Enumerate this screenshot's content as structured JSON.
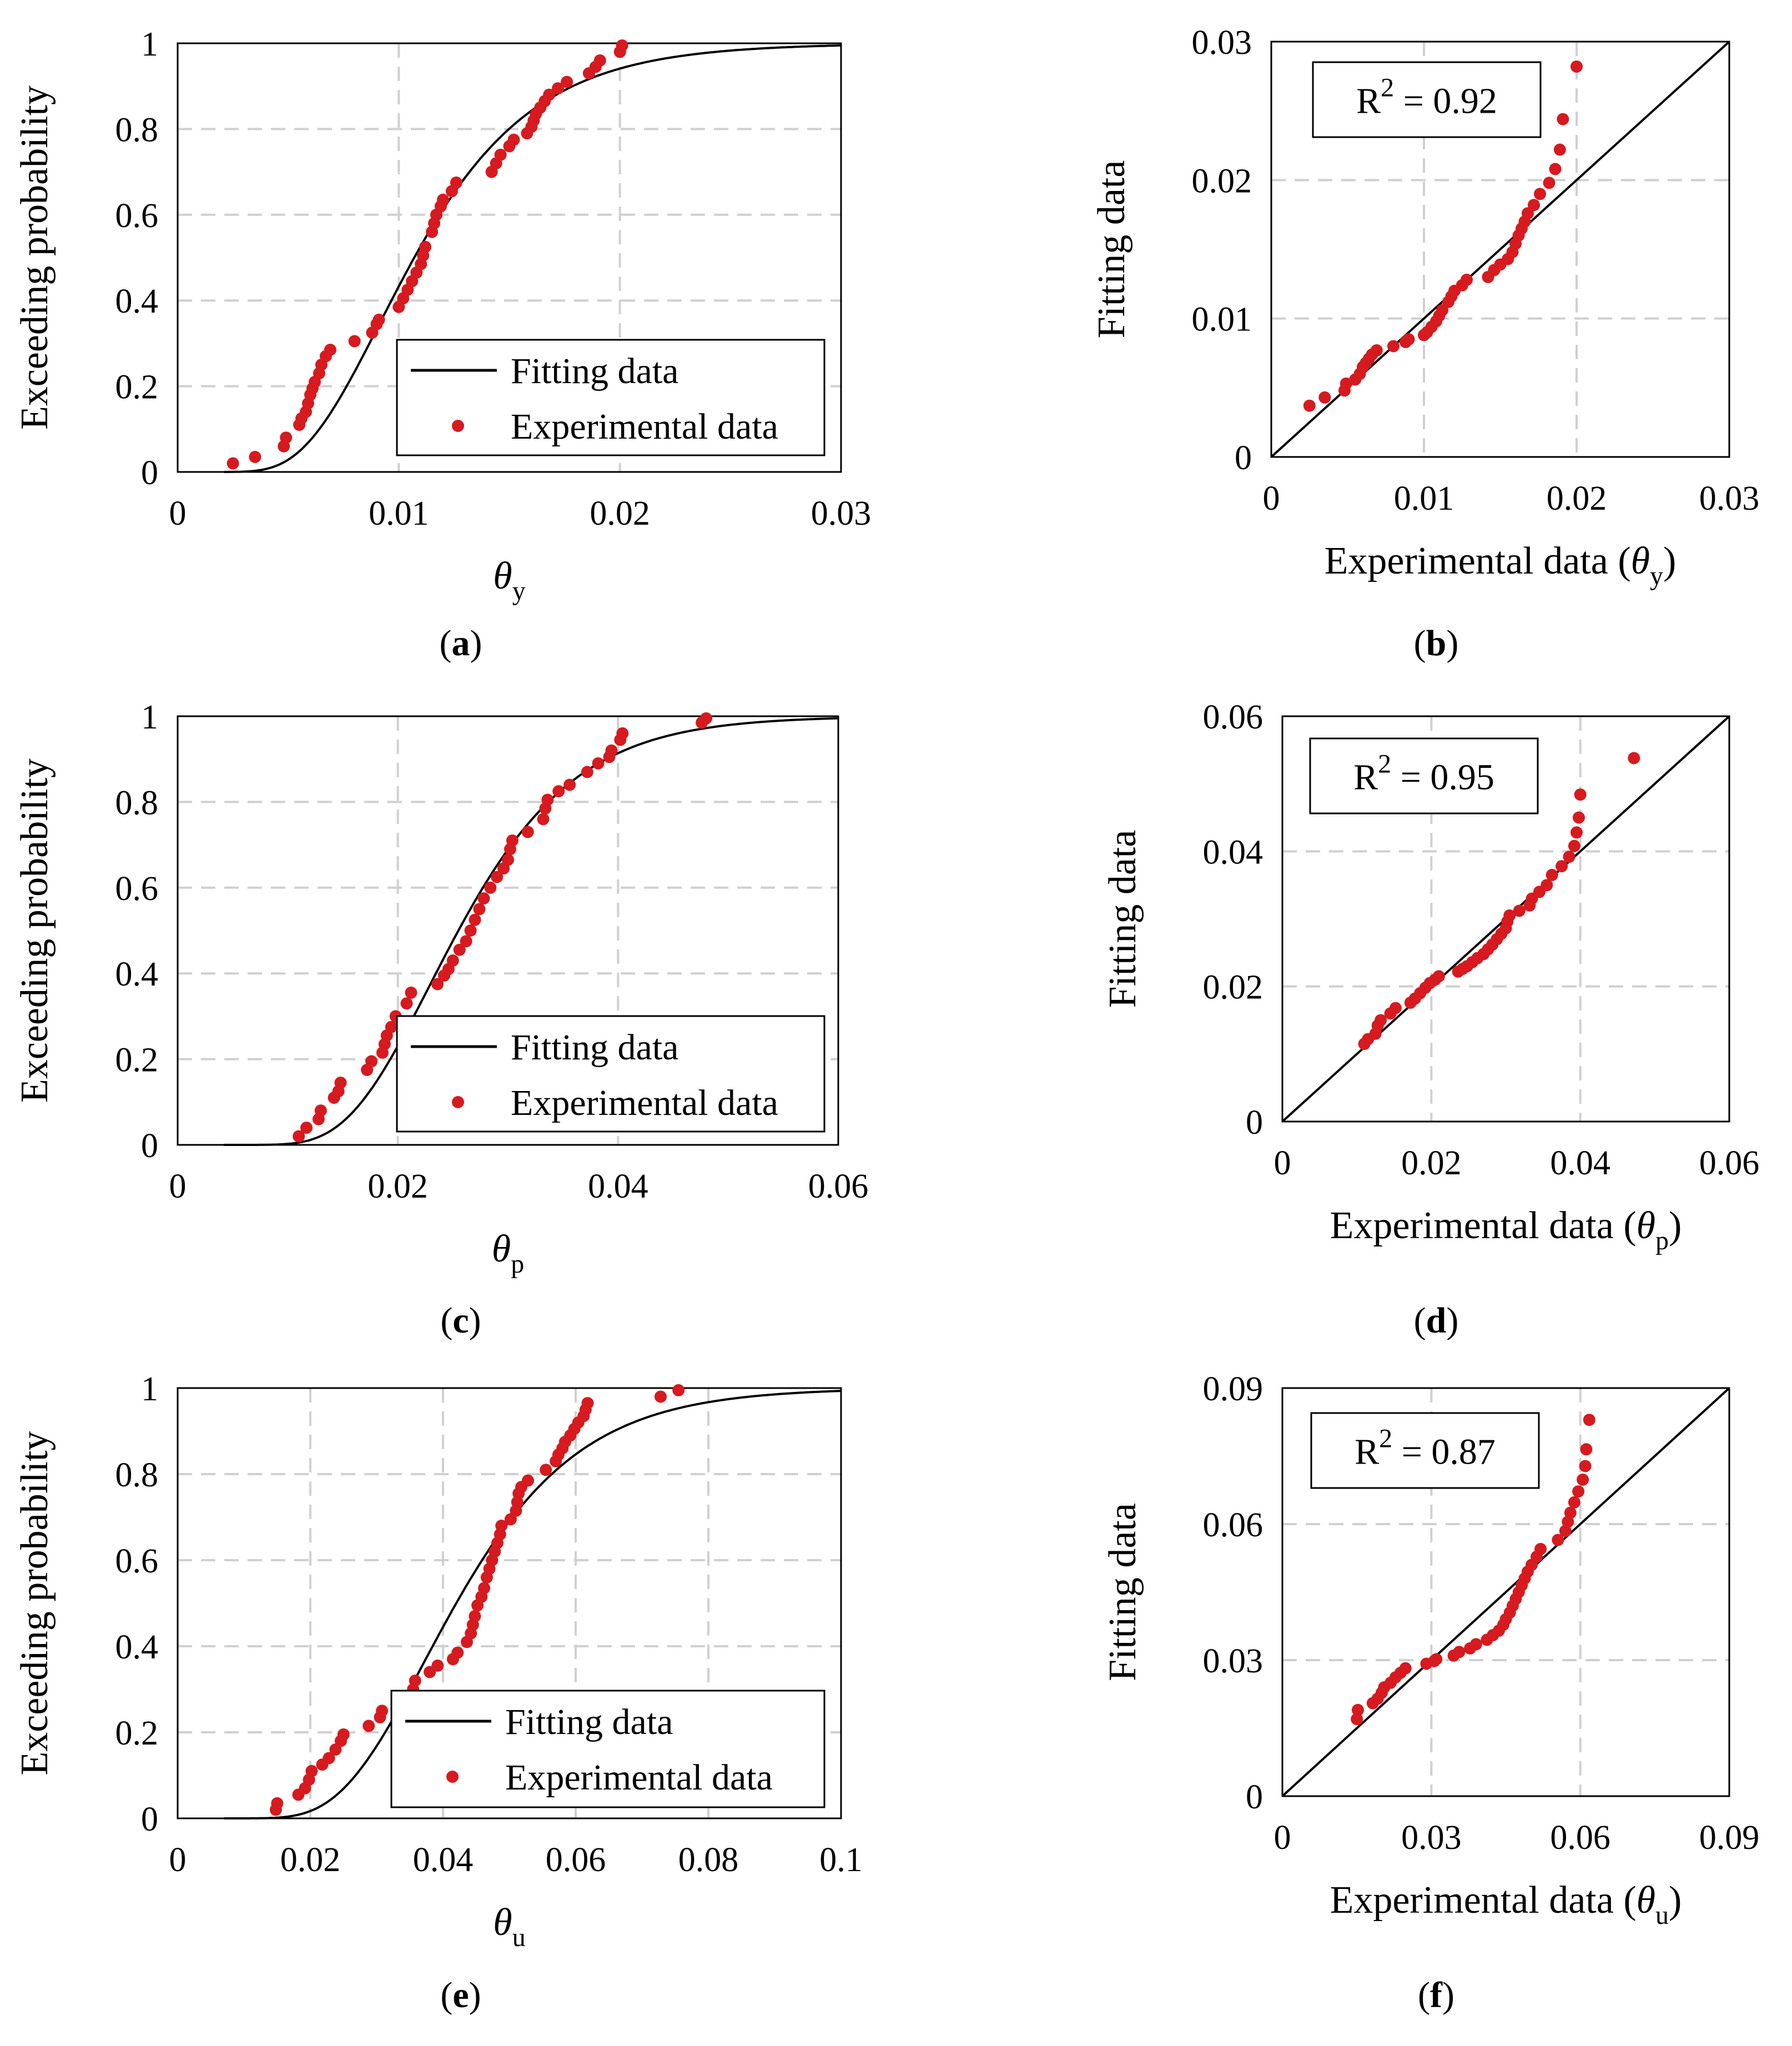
{
  "colors": {
    "fit": "#000000",
    "points": "#d61a1f",
    "grid": "#d0d0d0",
    "frame": "#000000"
  },
  "charts": [
    {
      "kind": "cdf",
      "panel": "(a)",
      "xsym": "θ",
      "xsub": "y",
      "ylabel": "Exceeding probability",
      "xlim": [
        0,
        0.03
      ],
      "ylim": [
        0,
        1
      ],
      "xticks": [
        0,
        0.01,
        0.02,
        0.03
      ],
      "xticklabels": [
        "0",
        "0.01",
        "0.02",
        "0.03"
      ],
      "yticks": [
        0,
        0.2,
        0.4,
        0.6,
        0.8,
        1
      ],
      "yticklabels": [
        "0",
        "0.2",
        "0.4",
        "0.6",
        "0.8",
        "1"
      ],
      "legend": {
        "fit": "Fitting data",
        "exp": "Experimental data"
      },
      "fit": {
        "median": 0.0107,
        "beta": 0.4
      },
      "points": [
        [
          0.0025,
          0.02
        ],
        [
          0.0035,
          0.035
        ],
        [
          0.0048,
          0.06
        ],
        [
          0.0049,
          0.08
        ],
        [
          0.0055,
          0.11
        ],
        [
          0.0056,
          0.125
        ],
        [
          0.0058,
          0.14
        ],
        [
          0.0059,
          0.16
        ],
        [
          0.006,
          0.18
        ],
        [
          0.0061,
          0.195
        ],
        [
          0.0062,
          0.21
        ],
        [
          0.0064,
          0.23
        ],
        [
          0.0065,
          0.25
        ],
        [
          0.0067,
          0.27
        ],
        [
          0.0069,
          0.285
        ],
        [
          0.008,
          0.305
        ],
        [
          0.0088,
          0.325
        ],
        [
          0.009,
          0.345
        ],
        [
          0.0091,
          0.355
        ],
        [
          0.01,
          0.385
        ],
        [
          0.0102,
          0.405
        ],
        [
          0.0104,
          0.425
        ],
        [
          0.0106,
          0.445
        ],
        [
          0.0108,
          0.465
        ],
        [
          0.011,
          0.485
        ],
        [
          0.0111,
          0.505
        ],
        [
          0.0112,
          0.525
        ],
        [
          0.0115,
          0.56
        ],
        [
          0.0116,
          0.58
        ],
        [
          0.0117,
          0.6
        ],
        [
          0.0119,
          0.62
        ],
        [
          0.012,
          0.635
        ],
        [
          0.0124,
          0.655
        ],
        [
          0.0126,
          0.675
        ],
        [
          0.0142,
          0.7
        ],
        [
          0.0144,
          0.72
        ],
        [
          0.0146,
          0.74
        ],
        [
          0.015,
          0.76
        ],
        [
          0.0152,
          0.775
        ],
        [
          0.0158,
          0.79
        ],
        [
          0.016,
          0.805
        ],
        [
          0.0161,
          0.82
        ],
        [
          0.0162,
          0.835
        ],
        [
          0.0164,
          0.85
        ],
        [
          0.0166,
          0.865
        ],
        [
          0.0168,
          0.88
        ],
        [
          0.0172,
          0.895
        ],
        [
          0.0176,
          0.91
        ],
        [
          0.0186,
          0.93
        ],
        [
          0.0189,
          0.945
        ],
        [
          0.0191,
          0.96
        ],
        [
          0.02,
          0.98
        ],
        [
          0.0201,
          0.995
        ]
      ]
    },
    {
      "kind": "qq",
      "panel": "(b)",
      "xsym": "θ",
      "xsub": "y",
      "xlabel_prefix": "Experimental data (",
      "xlabel_suffix": ")",
      "ylabel": "Fitting data",
      "xlim": [
        0,
        0.03
      ],
      "ylim": [
        0,
        0.03
      ],
      "xticks": [
        0,
        0.01,
        0.02,
        0.03
      ],
      "xticklabels": [
        "0",
        "0.01",
        "0.02",
        "0.03"
      ],
      "yticks": [
        0,
        0.01,
        0.02,
        0.03
      ],
      "yticklabels": [
        "0",
        "0.01",
        "0.02",
        "0.03"
      ],
      "r2_prefix": "R",
      "r2_sup": "2",
      "r2_value": " = 0.92",
      "points": [
        [
          0.0025,
          0.0037
        ],
        [
          0.0035,
          0.0043
        ],
        [
          0.0048,
          0.0048
        ],
        [
          0.0049,
          0.0053
        ],
        [
          0.0055,
          0.0056
        ],
        [
          0.0058,
          0.006
        ],
        [
          0.006,
          0.0065
        ],
        [
          0.0062,
          0.0068
        ],
        [
          0.0064,
          0.0071
        ],
        [
          0.0066,
          0.0074
        ],
        [
          0.0069,
          0.0077
        ],
        [
          0.008,
          0.008
        ],
        [
          0.0088,
          0.0083
        ],
        [
          0.009,
          0.0085
        ],
        [
          0.01,
          0.0088
        ],
        [
          0.0102,
          0.009
        ],
        [
          0.0105,
          0.0094
        ],
        [
          0.0108,
          0.0098
        ],
        [
          0.011,
          0.0102
        ],
        [
          0.0112,
          0.0106
        ],
        [
          0.0116,
          0.0112
        ],
        [
          0.0118,
          0.0116
        ],
        [
          0.012,
          0.012
        ],
        [
          0.0125,
          0.0124
        ],
        [
          0.0128,
          0.0128
        ],
        [
          0.0142,
          0.013
        ],
        [
          0.0146,
          0.0135
        ],
        [
          0.015,
          0.0139
        ],
        [
          0.0155,
          0.0143
        ],
        [
          0.0158,
          0.0148
        ],
        [
          0.016,
          0.0154
        ],
        [
          0.0162,
          0.016
        ],
        [
          0.0164,
          0.0165
        ],
        [
          0.0166,
          0.017
        ],
        [
          0.0168,
          0.0176
        ],
        [
          0.0172,
          0.0182
        ],
        [
          0.0176,
          0.019
        ],
        [
          0.0182,
          0.0198
        ],
        [
          0.0186,
          0.0208
        ],
        [
          0.0189,
          0.0222
        ],
        [
          0.0191,
          0.0244
        ],
        [
          0.02,
          0.0282
        ]
      ]
    },
    {
      "kind": "cdf",
      "panel": "(c)",
      "xsym": "θ",
      "xsub": "p",
      "ylabel": "Exceeding probability",
      "xlim": [
        0,
        0.06
      ],
      "ylim": [
        0,
        1
      ],
      "xticks": [
        0,
        0.02,
        0.04,
        0.06
      ],
      "xticklabels": [
        "0",
        "0.02",
        "0.04",
        "0.06"
      ],
      "yticks": [
        0,
        0.2,
        0.4,
        0.6,
        0.8,
        1
      ],
      "yticklabels": [
        "0",
        "0.2",
        "0.4",
        "0.6",
        "0.8",
        "1"
      ],
      "legend": {
        "fit": "Fitting data",
        "exp": "Experimental data"
      },
      "fit": {
        "median": 0.0255,
        "beta": 0.33
      },
      "points": [
        [
          0.011,
          0.02
        ],
        [
          0.0117,
          0.04
        ],
        [
          0.0128,
          0.06
        ],
        [
          0.013,
          0.08
        ],
        [
          0.0142,
          0.11
        ],
        [
          0.0146,
          0.125
        ],
        [
          0.0148,
          0.145
        ],
        [
          0.0172,
          0.175
        ],
        [
          0.0176,
          0.195
        ],
        [
          0.0186,
          0.215
        ],
        [
          0.0188,
          0.235
        ],
        [
          0.019,
          0.255
        ],
        [
          0.0194,
          0.275
        ],
        [
          0.0198,
          0.3
        ],
        [
          0.0208,
          0.33
        ],
        [
          0.0212,
          0.355
        ],
        [
          0.0236,
          0.375
        ],
        [
          0.0242,
          0.395
        ],
        [
          0.0246,
          0.41
        ],
        [
          0.025,
          0.43
        ],
        [
          0.0256,
          0.455
        ],
        [
          0.0262,
          0.475
        ],
        [
          0.0266,
          0.5
        ],
        [
          0.027,
          0.525
        ],
        [
          0.0274,
          0.55
        ],
        [
          0.0278,
          0.575
        ],
        [
          0.0284,
          0.6
        ],
        [
          0.029,
          0.625
        ],
        [
          0.0296,
          0.645
        ],
        [
          0.03,
          0.665
        ],
        [
          0.0302,
          0.69
        ],
        [
          0.0304,
          0.71
        ],
        [
          0.0318,
          0.73
        ],
        [
          0.0332,
          0.76
        ],
        [
          0.0334,
          0.785
        ],
        [
          0.0336,
          0.805
        ],
        [
          0.0346,
          0.825
        ],
        [
          0.0356,
          0.84
        ],
        [
          0.0372,
          0.87
        ],
        [
          0.0382,
          0.89
        ],
        [
          0.0392,
          0.905
        ],
        [
          0.0394,
          0.92
        ],
        [
          0.0402,
          0.945
        ],
        [
          0.0404,
          0.96
        ],
        [
          0.0476,
          0.985
        ],
        [
          0.048,
          0.995
        ]
      ]
    },
    {
      "kind": "qq",
      "panel": "(d)",
      "xsym": "θ",
      "xsub": "p",
      "xlabel_prefix": "Experimental data (",
      "xlabel_suffix": ")",
      "ylabel": "Fitting data",
      "xlim": [
        0,
        0.06
      ],
      "ylim": [
        0,
        0.06
      ],
      "xticks": [
        0,
        0.02,
        0.04,
        0.06
      ],
      "xticklabels": [
        "0",
        "0.02",
        "0.04",
        "0.06"
      ],
      "yticks": [
        0,
        0.02,
        0.04,
        0.06
      ],
      "yticklabels": [
        "0",
        "0.02",
        "0.04",
        "0.06"
      ],
      "r2_prefix": "R",
      "r2_sup": "2",
      "r2_value": " = 0.95",
      "points": [
        [
          0.011,
          0.0115
        ],
        [
          0.0115,
          0.0122
        ],
        [
          0.0125,
          0.013
        ],
        [
          0.0128,
          0.0142
        ],
        [
          0.0132,
          0.015
        ],
        [
          0.0145,
          0.016
        ],
        [
          0.0152,
          0.0168
        ],
        [
          0.0172,
          0.0176
        ],
        [
          0.0178,
          0.0182
        ],
        [
          0.0185,
          0.019
        ],
        [
          0.0192,
          0.0198
        ],
        [
          0.0198,
          0.0205
        ],
        [
          0.0205,
          0.021
        ],
        [
          0.021,
          0.0215
        ],
        [
          0.0236,
          0.0222
        ],
        [
          0.0242,
          0.0226
        ],
        [
          0.0248,
          0.023
        ],
        [
          0.0255,
          0.0236
        ],
        [
          0.0262,
          0.0242
        ],
        [
          0.027,
          0.0248
        ],
        [
          0.0276,
          0.0255
        ],
        [
          0.0282,
          0.0262
        ],
        [
          0.0288,
          0.027
        ],
        [
          0.0294,
          0.0278
        ],
        [
          0.03,
          0.0286
        ],
        [
          0.0302,
          0.0296
        ],
        [
          0.0305,
          0.0305
        ],
        [
          0.0318,
          0.0312
        ],
        [
          0.0332,
          0.032
        ],
        [
          0.0335,
          0.033
        ],
        [
          0.0345,
          0.034
        ],
        [
          0.0355,
          0.035
        ],
        [
          0.0362,
          0.0365
        ],
        [
          0.0375,
          0.0378
        ],
        [
          0.0385,
          0.0392
        ],
        [
          0.0392,
          0.0408
        ],
        [
          0.0395,
          0.0428
        ],
        [
          0.0398,
          0.045
        ],
        [
          0.04,
          0.0484
        ],
        [
          0.0472,
          0.0538
        ]
      ]
    },
    {
      "kind": "cdf",
      "panel": "(e)",
      "xsym": "θ",
      "xsub": "u",
      "ylabel": "Exceeding probability",
      "xlim": [
        0,
        0.1
      ],
      "ylim": [
        0,
        1
      ],
      "xticks": [
        0,
        0.02,
        0.04,
        0.06,
        0.08,
        0.1
      ],
      "xticklabels": [
        "0",
        "0.02",
        "0.04",
        "0.06",
        "0.08",
        "0.1"
      ],
      "yticks": [
        0,
        0.2,
        0.4,
        0.6,
        0.8,
        1
      ],
      "yticklabels": [
        "0",
        "0.2",
        "0.4",
        "0.6",
        "0.8",
        "1"
      ],
      "legend": {
        "fit": "Fitting data",
        "exp": "Experimental data"
      },
      "fit": {
        "median": 0.042,
        "beta": 0.35
      },
      "points": [
        [
          0.0148,
          0.02
        ],
        [
          0.015,
          0.035
        ],
        [
          0.0182,
          0.055
        ],
        [
          0.0192,
          0.07
        ],
        [
          0.0198,
          0.09
        ],
        [
          0.0202,
          0.11
        ],
        [
          0.0218,
          0.125
        ],
        [
          0.0228,
          0.14
        ],
        [
          0.0238,
          0.16
        ],
        [
          0.0246,
          0.18
        ],
        [
          0.025,
          0.195
        ],
        [
          0.0288,
          0.215
        ],
        [
          0.0305,
          0.235
        ],
        [
          0.0308,
          0.25
        ],
        [
          0.0355,
          0.3
        ],
        [
          0.0358,
          0.32
        ],
        [
          0.038,
          0.34
        ],
        [
          0.0392,
          0.355
        ],
        [
          0.0415,
          0.37
        ],
        [
          0.0422,
          0.385
        ],
        [
          0.0436,
          0.41
        ],
        [
          0.0442,
          0.43
        ],
        [
          0.0445,
          0.45
        ],
        [
          0.0448,
          0.47
        ],
        [
          0.0452,
          0.495
        ],
        [
          0.0458,
          0.515
        ],
        [
          0.0462,
          0.535
        ],
        [
          0.0466,
          0.56
        ],
        [
          0.047,
          0.58
        ],
        [
          0.0474,
          0.6
        ],
        [
          0.0478,
          0.62
        ],
        [
          0.0482,
          0.64
        ],
        [
          0.0486,
          0.66
        ],
        [
          0.0488,
          0.68
        ],
        [
          0.0502,
          0.695
        ],
        [
          0.051,
          0.715
        ],
        [
          0.0512,
          0.735
        ],
        [
          0.0514,
          0.755
        ],
        [
          0.0518,
          0.77
        ],
        [
          0.0528,
          0.785
        ],
        [
          0.0555,
          0.81
        ],
        [
          0.057,
          0.83
        ],
        [
          0.0574,
          0.845
        ],
        [
          0.058,
          0.86
        ],
        [
          0.0584,
          0.875
        ],
        [
          0.0592,
          0.89
        ],
        [
          0.0598,
          0.905
        ],
        [
          0.0604,
          0.92
        ],
        [
          0.0612,
          0.935
        ],
        [
          0.0615,
          0.95
        ],
        [
          0.0618,
          0.965
        ],
        [
          0.0728,
          0.98
        ],
        [
          0.0755,
          0.995
        ]
      ]
    },
    {
      "kind": "qq",
      "panel": "(f)",
      "xsym": "θ",
      "xsub": "u",
      "xlabel_prefix": "Experimental data (",
      "xlabel_suffix": ")",
      "ylabel": "Fitting data",
      "xlim": [
        0,
        0.09
      ],
      "ylim": [
        0,
        0.09
      ],
      "xticks": [
        0,
        0.03,
        0.06,
        0.09
      ],
      "xticklabels": [
        "0",
        "0.03",
        "0.06",
        "0.09"
      ],
      "yticks": [
        0,
        0.03,
        0.06,
        0.09
      ],
      "yticklabels": [
        "0",
        "0.03",
        "0.06",
        "0.09"
      ],
      "r2_prefix": "R",
      "r2_sup": "2",
      "r2_value": " = 0.87",
      "points": [
        [
          0.015,
          0.017
        ],
        [
          0.0152,
          0.019
        ],
        [
          0.0182,
          0.0205
        ],
        [
          0.0192,
          0.0215
        ],
        [
          0.02,
          0.0228
        ],
        [
          0.0205,
          0.024
        ],
        [
          0.0218,
          0.025
        ],
        [
          0.0228,
          0.0262
        ],
        [
          0.0238,
          0.0272
        ],
        [
          0.0248,
          0.0282
        ],
        [
          0.029,
          0.0292
        ],
        [
          0.0306,
          0.0298
        ],
        [
          0.031,
          0.0302
        ],
        [
          0.0345,
          0.031
        ],
        [
          0.0356,
          0.0318
        ],
        [
          0.0378,
          0.0326
        ],
        [
          0.039,
          0.0335
        ],
        [
          0.0412,
          0.0345
        ],
        [
          0.0424,
          0.0355
        ],
        [
          0.0436,
          0.0365
        ],
        [
          0.0445,
          0.0378
        ],
        [
          0.045,
          0.039
        ],
        [
          0.0458,
          0.0405
        ],
        [
          0.0464,
          0.042
        ],
        [
          0.047,
          0.0435
        ],
        [
          0.0476,
          0.045
        ],
        [
          0.0482,
          0.0465
        ],
        [
          0.0488,
          0.048
        ],
        [
          0.0494,
          0.0495
        ],
        [
          0.0502,
          0.051
        ],
        [
          0.0512,
          0.0528
        ],
        [
          0.052,
          0.0545
        ],
        [
          0.0555,
          0.0565
        ],
        [
          0.057,
          0.0585
        ],
        [
          0.0575,
          0.0605
        ],
        [
          0.058,
          0.0625
        ],
        [
          0.0588,
          0.0648
        ],
        [
          0.0596,
          0.0672
        ],
        [
          0.0605,
          0.0698
        ],
        [
          0.061,
          0.0728
        ],
        [
          0.0612,
          0.0765
        ],
        [
          0.0618,
          0.083
        ]
      ]
    }
  ]
}
